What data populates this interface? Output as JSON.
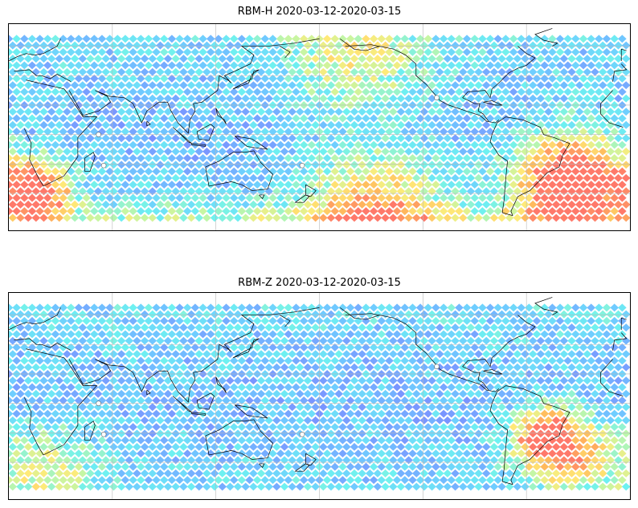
{
  "panels": [
    {
      "title": "RBM-H 2020-03-12-2020-03-15",
      "colormap": [
        "#5a5cff",
        "#6b8cff",
        "#5fc8ff",
        "#5ef0ef",
        "#bff59a",
        "#ffe86a",
        "#ffb24a",
        "#ff6a5a"
      ],
      "hotspots": [
        {
          "name": "south-atlantic-high",
          "lon": -35,
          "lat": -32,
          "strength": 1.0,
          "spread": 32
        },
        {
          "name": "south-africa-high",
          "lon": 15,
          "lat": -38,
          "strength": 0.85,
          "spread": 20
        },
        {
          "name": "south-pacific-band",
          "lon": -150,
          "lat": -52,
          "strength": 0.55,
          "spread": 40
        },
        {
          "name": "north-pacific-band",
          "lon": -160,
          "lat": 55,
          "strength": 0.35,
          "spread": 40
        }
      ]
    },
    {
      "title": "RBM-Z 2020-03-12-2020-03-15",
      "colormap": [
        "#5a5cff",
        "#6b8cff",
        "#5fc8ff",
        "#5ef0ef",
        "#bff59a",
        "#ffe86a",
        "#ffb24a",
        "#ff6a5a"
      ],
      "hotspots": [
        {
          "name": "south-america-high",
          "lon": -50,
          "lat": -22,
          "strength": 0.7,
          "spread": 20
        },
        {
          "name": "south-atlantic-mid",
          "lon": -35,
          "lat": -35,
          "strength": 0.45,
          "spread": 25
        },
        {
          "name": "south-indian-band",
          "lon": 20,
          "lat": -45,
          "strength": 0.35,
          "spread": 30
        }
      ]
    }
  ],
  "map_extent": {
    "lon_min": 0,
    "lon_max": 360,
    "lat_min": -65,
    "lat_max": 75
  },
  "data_extent": {
    "lat_min": -60,
    "lat_max": 65
  }
}
